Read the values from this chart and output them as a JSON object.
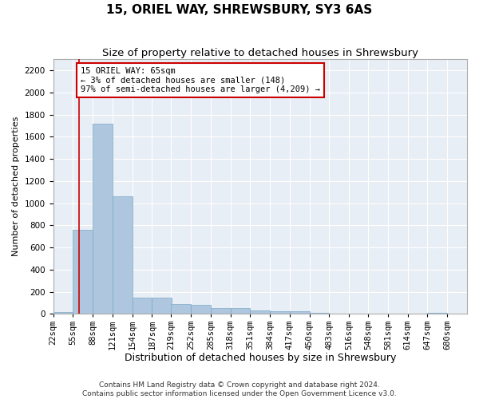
{
  "title": "15, ORIEL WAY, SHREWSBURY, SY3 6AS",
  "subtitle": "Size of property relative to detached houses in Shrewsbury",
  "xlabel": "Distribution of detached houses by size in Shrewsbury",
  "ylabel": "Number of detached properties",
  "footer1": "Contains HM Land Registry data © Crown copyright and database right 2024.",
  "footer2": "Contains public sector information licensed under the Open Government Licence v3.0.",
  "annotation_line1": "15 ORIEL WAY: 65sqm",
  "annotation_line2": "← 3% of detached houses are smaller (148)",
  "annotation_line3": "97% of semi-detached houses are larger (4,209) →",
  "bar_starts": [
    22,
    55,
    88,
    121,
    154,
    187,
    219,
    252,
    285,
    318,
    351,
    384,
    417,
    450,
    483,
    516,
    548,
    581,
    614,
    647
  ],
  "bar_labels": [
    "22sqm",
    "55sqm",
    "88sqm",
    "121sqm",
    "154sqm",
    "187sqm",
    "219sqm",
    "252sqm",
    "285sqm",
    "318sqm",
    "351sqm",
    "384sqm",
    "417sqm",
    "450sqm",
    "483sqm",
    "516sqm",
    "548sqm",
    "581sqm",
    "614sqm",
    "647sqm",
    "680sqm"
  ],
  "bar_values": [
    18,
    760,
    1720,
    1060,
    150,
    150,
    90,
    85,
    55,
    55,
    35,
    25,
    25,
    10,
    4,
    2,
    1,
    1,
    0,
    12
  ],
  "bar_color": "#aec6de",
  "bar_edgecolor": "#7aaac8",
  "vline_color": "#cc0000",
  "vline_x": 65,
  "annotation_box_edgecolor": "#cc0000",
  "background_color": "#e8eef5",
  "ylim": [
    0,
    2300
  ],
  "yticks": [
    0,
    200,
    400,
    600,
    800,
    1000,
    1200,
    1400,
    1600,
    1800,
    2000,
    2200
  ],
  "grid_color": "#ffffff",
  "title_fontsize": 11,
  "subtitle_fontsize": 9.5,
  "xlabel_fontsize": 9,
  "ylabel_fontsize": 8,
  "tick_fontsize": 7.5,
  "annotation_fontsize": 7.5,
  "footer_fontsize": 6.5
}
